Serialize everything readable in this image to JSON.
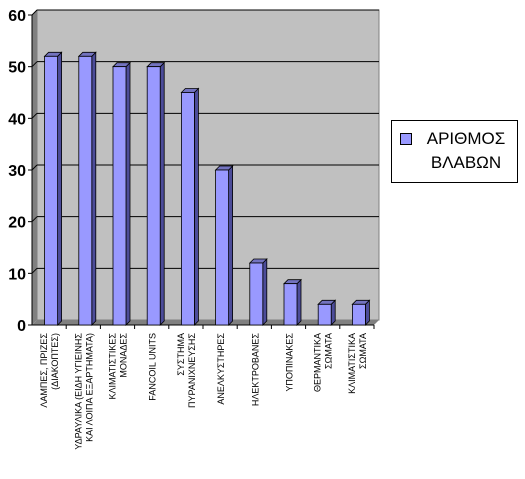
{
  "chart_data": {
    "type": "bar",
    "categories": [
      "ΛΑΜΠΕΣ, ΠΡΙΖΕΣ\n(ΔΙΑΚΟΠΤΕΣ)",
      "ΥΔΡΑΥΛΙΚΑ (ΕΙΔΗ ΥΓΙΕΙΝΗΣ\nΚΑΙ ΛΟΙΠΑ ΕΞΑΡΤΗΜΑΤΑ)",
      "ΚΛΙΜΑΤΙΣΤΙΚΕΣ\nΜΟΝΑΔΕΣ",
      "FANCOIL UNITS",
      "ΣΥΣΤΗΜΑ\nΠΥΡΑΝΙΧΝΕΥΣΗΣ",
      "ΑΝΕΛΚΥΣΤΗΡΕΣ",
      "ΗΛΕΚΤΡΟΒΑΝΕΣ",
      "ΥΠΟΠΙΝΑΚΕΣ",
      "ΘΕΡΜΑΝΤΙΚΑ\nΣΩΜΑΤΑ",
      "ΚΛΙΜΑΤΙΣΤΙΚΑ\nΣΩΜΑΤΑ"
    ],
    "series": [
      {
        "name": "ΑΡΙΘΜΟΣ ΒΛΑΒΩΝ",
        "values": [
          52,
          52,
          50,
          50,
          45,
          30,
          12,
          8,
          4,
          4
        ]
      }
    ],
    "ylim": [
      0,
      60
    ],
    "yticks": [
      0,
      10,
      20,
      30,
      40,
      50,
      60
    ],
    "grid": true,
    "legend": "right",
    "colors": {
      "bar": "#9999ff",
      "plot_background": "#c0c0c0",
      "gridline": "#000000"
    }
  },
  "legend": {
    "label": "ΑΡΙΘΜΟΣ\nΒΛΑΒΩΝ"
  }
}
